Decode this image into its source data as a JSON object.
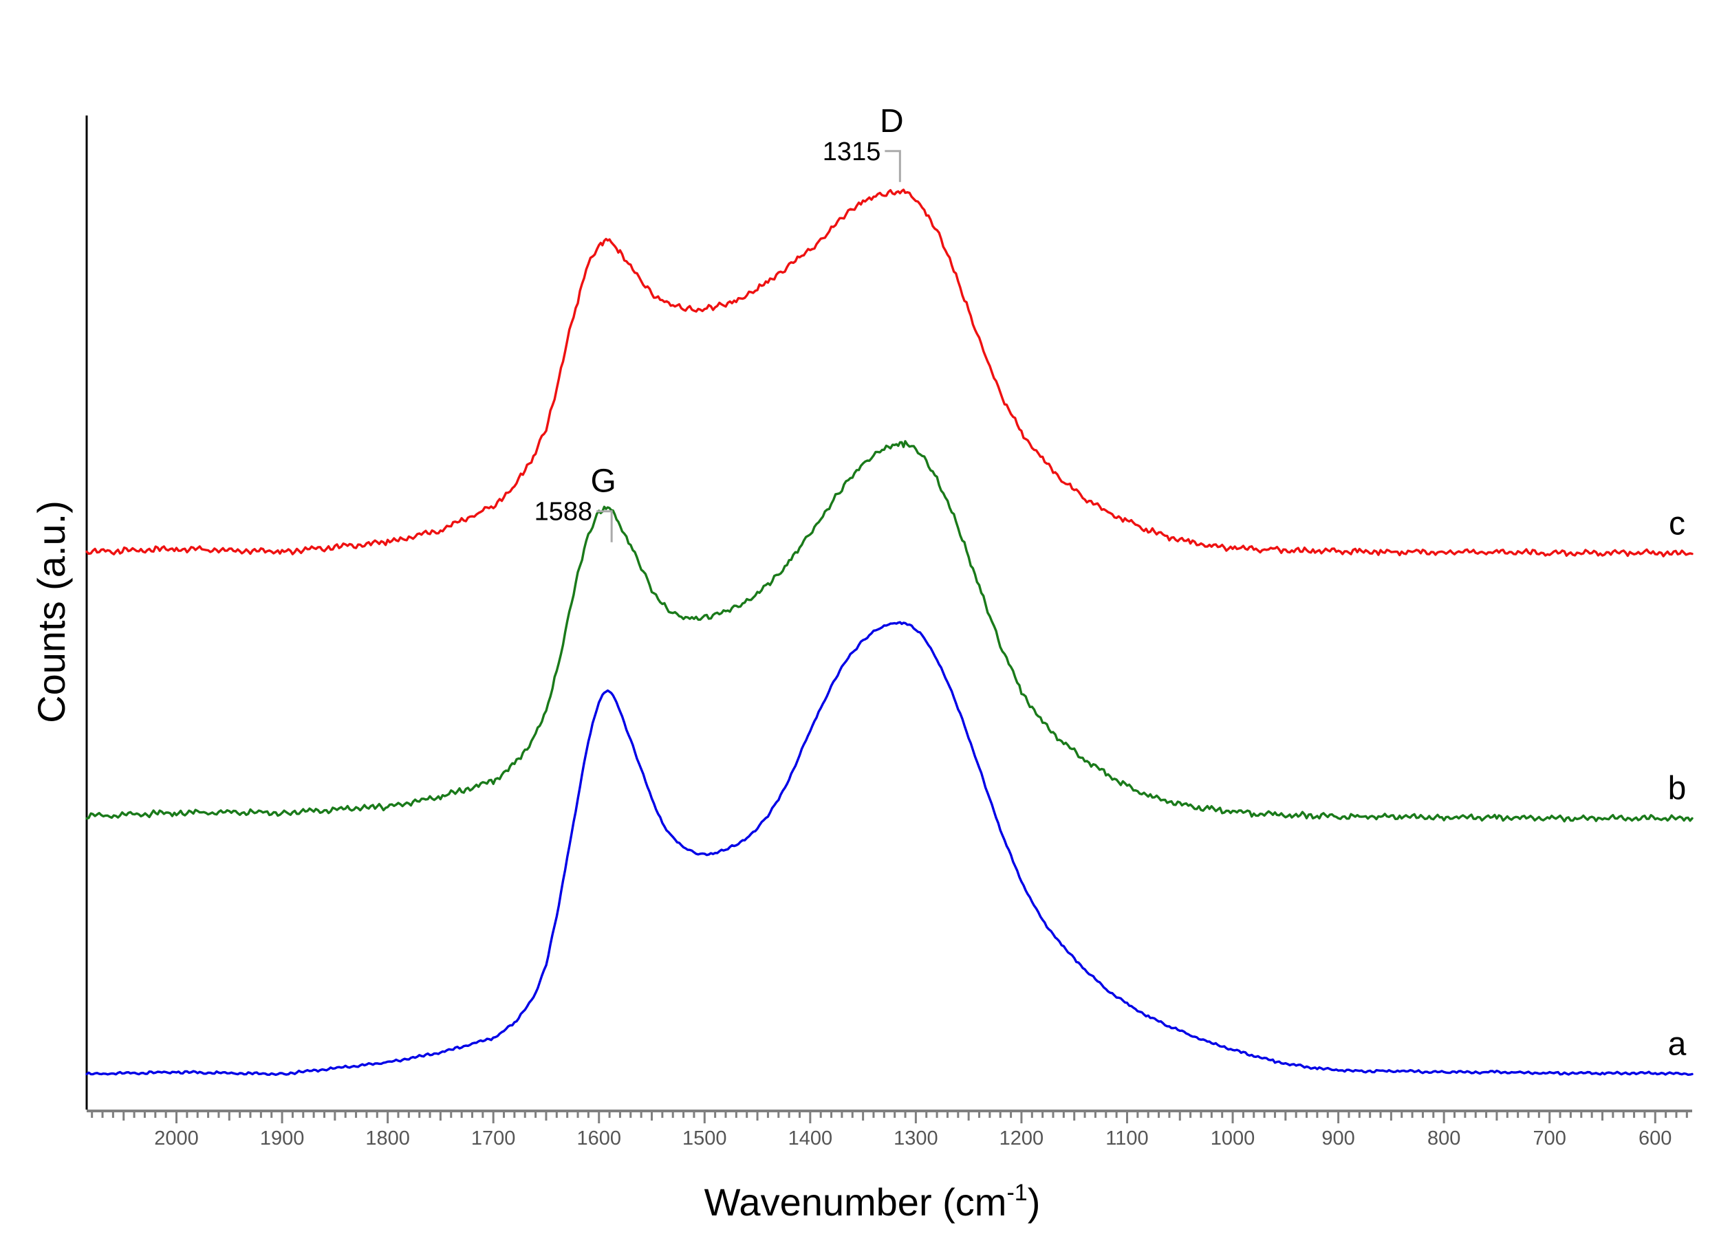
{
  "chart_data": {
    "type": "line",
    "xlabel": "Wavenumber (cm",
    "xlabel_superscript": "-1",
    "xlabel_close": ")",
    "ylabel": "Counts (a.u.)",
    "x_reversed": true,
    "xlim": [
      2085,
      565
    ],
    "x_ticks": [
      2000,
      1900,
      1800,
      1700,
      1600,
      1500,
      1400,
      1300,
      1200,
      1100,
      1000,
      900,
      800,
      700,
      600
    ],
    "x_minor_tick_step": 10,
    "ylim": [
      0,
      1
    ],
    "y_ticks_shown": false,
    "grid": false,
    "legend": "none",
    "colors": {
      "a": "#0000e6",
      "b": "#1a7a1a",
      "c": "#ee1111",
      "axis": "#7f7f7f",
      "marker": "#aaaaaa"
    },
    "series": [
      {
        "name": "a",
        "color": "#0000e6",
        "x": [
          2085,
          2000,
          1900,
          1800,
          1750,
          1700,
          1680,
          1660,
          1650,
          1640,
          1630,
          1620,
          1610,
          1600,
          1595,
          1590,
          1585,
          1580,
          1570,
          1560,
          1550,
          1540,
          1530,
          1520,
          1510,
          1500,
          1490,
          1480,
          1470,
          1460,
          1450,
          1440,
          1430,
          1420,
          1410,
          1400,
          1390,
          1380,
          1370,
          1360,
          1350,
          1340,
          1330,
          1320,
          1315,
          1310,
          1300,
          1290,
          1280,
          1270,
          1260,
          1250,
          1240,
          1230,
          1220,
          1200,
          1180,
          1160,
          1140,
          1120,
          1100,
          1080,
          1060,
          1040,
          1020,
          1000,
          980,
          960,
          940,
          920,
          900,
          880,
          860,
          840,
          800,
          750,
          700,
          650,
          600,
          565
        ],
        "y": [
          0.018,
          0.02,
          0.018,
          0.03,
          0.04,
          0.055,
          0.07,
          0.1,
          0.13,
          0.18,
          0.24,
          0.3,
          0.36,
          0.4,
          0.409,
          0.41,
          0.403,
          0.39,
          0.36,
          0.33,
          0.3,
          0.275,
          0.26,
          0.25,
          0.245,
          0.243,
          0.244,
          0.248,
          0.253,
          0.26,
          0.27,
          0.283,
          0.3,
          0.32,
          0.345,
          0.37,
          0.393,
          0.415,
          0.435,
          0.45,
          0.462,
          0.471,
          0.477,
          0.48,
          0.481,
          0.48,
          0.474,
          0.462,
          0.443,
          0.42,
          0.393,
          0.363,
          0.332,
          0.3,
          0.268,
          0.215,
          0.175,
          0.148,
          0.125,
          0.105,
          0.09,
          0.077,
          0.067,
          0.058,
          0.05,
          0.043,
          0.037,
          0.031,
          0.027,
          0.024,
          0.022,
          0.021,
          0.021,
          0.021,
          0.02,
          0.02,
          0.019,
          0.019,
          0.019,
          0.018
        ]
      },
      {
        "name": "b",
        "color": "#1a7a1a",
        "x": [
          2085,
          2000,
          1900,
          1800,
          1750,
          1700,
          1680,
          1660,
          1650,
          1640,
          1630,
          1620,
          1610,
          1600,
          1595,
          1590,
          1585,
          1580,
          1570,
          1560,
          1550,
          1540,
          1530,
          1520,
          1510,
          1500,
          1490,
          1480,
          1470,
          1460,
          1450,
          1440,
          1430,
          1420,
          1410,
          1400,
          1390,
          1380,
          1370,
          1360,
          1350,
          1340,
          1330,
          1320,
          1315,
          1310,
          1300,
          1290,
          1280,
          1270,
          1260,
          1250,
          1240,
          1230,
          1220,
          1200,
          1180,
          1160,
          1140,
          1120,
          1100,
          1080,
          1060,
          1040,
          1020,
          1000,
          980,
          960,
          940,
          920,
          900,
          880,
          860,
          840,
          800,
          750,
          700,
          650,
          600,
          565
        ],
        "y": [
          0.282,
          0.286,
          0.286,
          0.292,
          0.302,
          0.318,
          0.335,
          0.365,
          0.39,
          0.43,
          0.48,
          0.53,
          0.57,
          0.594,
          0.598,
          0.598,
          0.592,
          0.58,
          0.56,
          0.537,
          0.515,
          0.5,
          0.49,
          0.486,
          0.485,
          0.486,
          0.488,
          0.492,
          0.497,
          0.502,
          0.51,
          0.52,
          0.53,
          0.543,
          0.557,
          0.572,
          0.588,
          0.603,
          0.618,
          0.632,
          0.643,
          0.652,
          0.658,
          0.662,
          0.664,
          0.663,
          0.658,
          0.646,
          0.627,
          0.604,
          0.578,
          0.548,
          0.518,
          0.487,
          0.458,
          0.41,
          0.378,
          0.357,
          0.34,
          0.326,
          0.313,
          0.303,
          0.297,
          0.292,
          0.289,
          0.287,
          0.285,
          0.284,
          0.283,
          0.283,
          0.282,
          0.282,
          0.282,
          0.282,
          0.281,
          0.281,
          0.28,
          0.28,
          0.28,
          0.28
        ]
      },
      {
        "name": "c",
        "color": "#ee1111",
        "x": [
          2085,
          2000,
          1900,
          1800,
          1750,
          1700,
          1680,
          1660,
          1650,
          1640,
          1630,
          1620,
          1610,
          1600,
          1595,
          1590,
          1585,
          1580,
          1570,
          1560,
          1550,
          1540,
          1530,
          1520,
          1510,
          1500,
          1490,
          1480,
          1470,
          1460,
          1450,
          1440,
          1430,
          1420,
          1410,
          1400,
          1390,
          1380,
          1370,
          1360,
          1350,
          1340,
          1330,
          1320,
          1315,
          1310,
          1300,
          1290,
          1280,
          1270,
          1260,
          1250,
          1240,
          1230,
          1220,
          1200,
          1180,
          1160,
          1140,
          1120,
          1100,
          1080,
          1060,
          1040,
          1020,
          1000,
          980,
          960,
          940,
          920,
          900,
          880,
          860,
          840,
          800,
          750,
          700,
          650,
          600,
          565
        ],
        "y": [
          0.553,
          0.556,
          0.553,
          0.563,
          0.575,
          0.6,
          0.62,
          0.655,
          0.68,
          0.72,
          0.77,
          0.81,
          0.85,
          0.866,
          0.87,
          0.872,
          0.866,
          0.86,
          0.845,
          0.83,
          0.818,
          0.81,
          0.805,
          0.803,
          0.802,
          0.802,
          0.804,
          0.807,
          0.811,
          0.816,
          0.822,
          0.83,
          0.838,
          0.846,
          0.854,
          0.862,
          0.872,
          0.883,
          0.895,
          0.905,
          0.912,
          0.917,
          0.92,
          0.922,
          0.922,
          0.921,
          0.914,
          0.9,
          0.882,
          0.857,
          0.83,
          0.8,
          0.77,
          0.742,
          0.715,
          0.675,
          0.648,
          0.625,
          0.608,
          0.595,
          0.585,
          0.575,
          0.568,
          0.563,
          0.559,
          0.557,
          0.556,
          0.555,
          0.554,
          0.554,
          0.554,
          0.553,
          0.553,
          0.553,
          0.553,
          0.553,
          0.552,
          0.552,
          0.552,
          0.551
        ]
      }
    ],
    "peak_labels": [
      {
        "letter": "G",
        "value": "1588",
        "x": 1588,
        "series": "c"
      },
      {
        "letter": "D",
        "value": "1315",
        "x": 1315,
        "series": "c"
      }
    ]
  }
}
